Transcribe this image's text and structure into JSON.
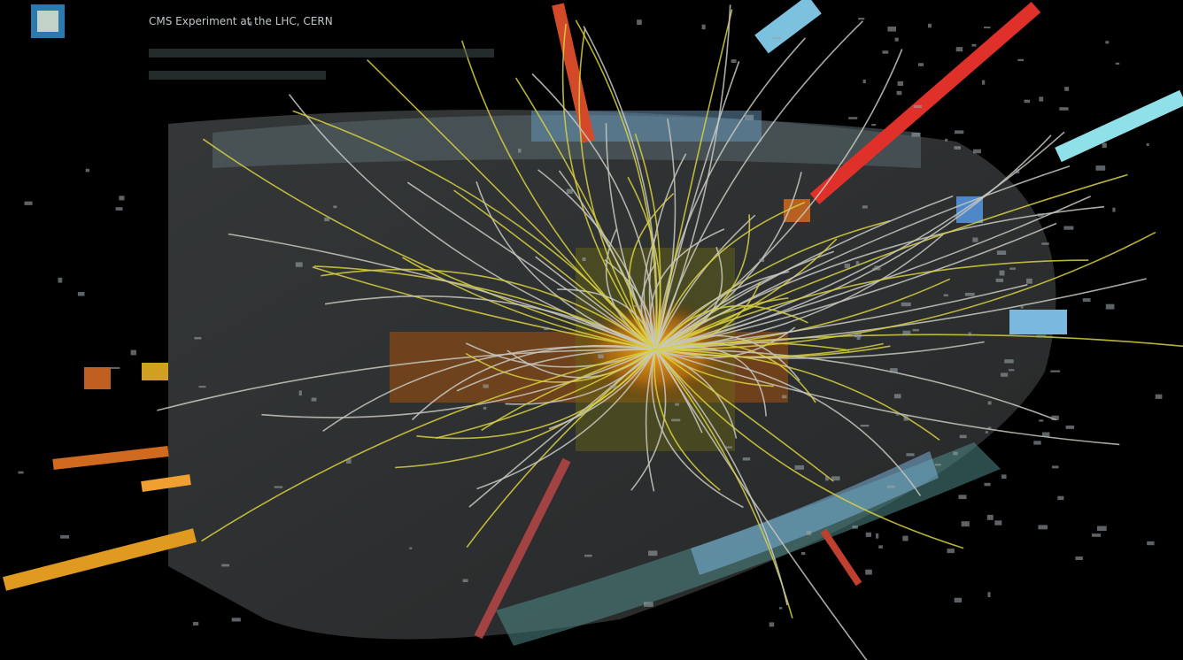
{
  "header": {
    "title": "CMS Experiment at the LHC, CERN"
  }
}
